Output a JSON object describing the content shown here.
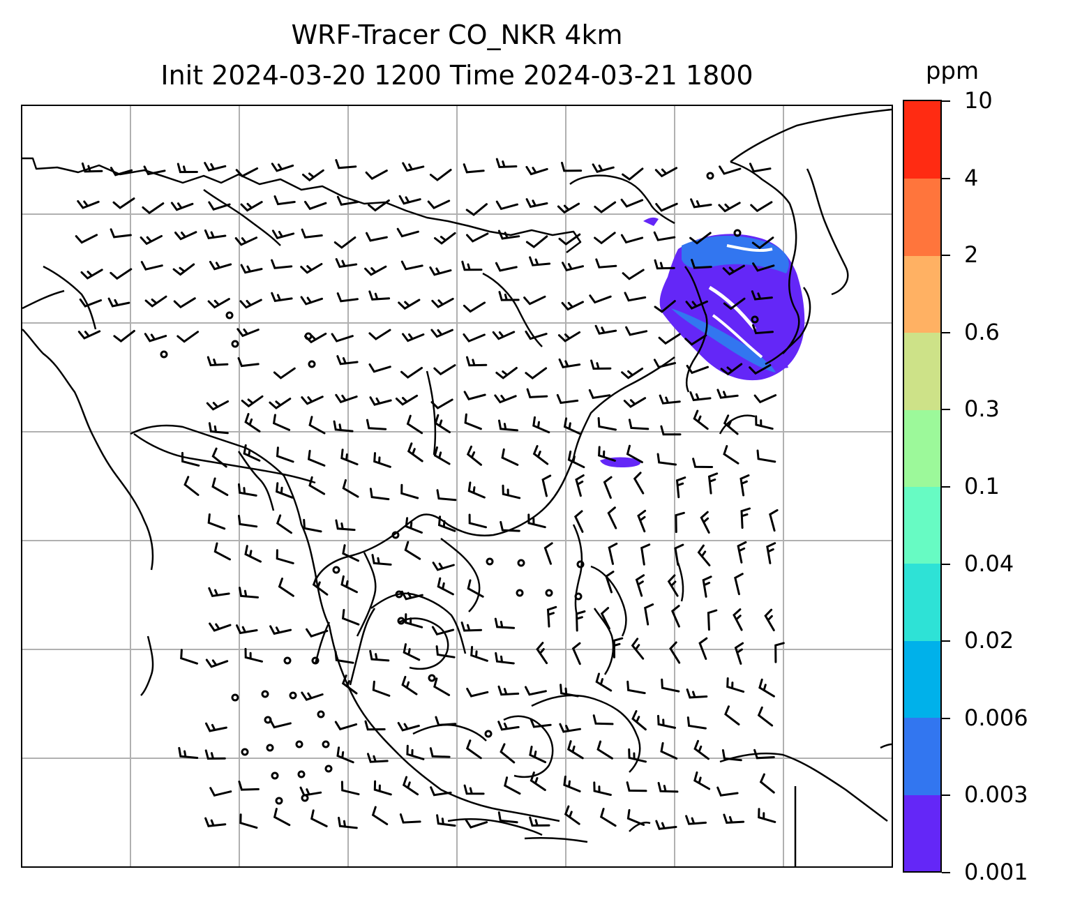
{
  "title": {
    "line1": "WRF-Tracer CO_NKR 4km",
    "line2": "Init 2024-03-20 1200 Time 2024-03-21 1800"
  },
  "colorbar": {
    "unit": "ppm",
    "tick_labels": [
      "0.001",
      "0.003",
      "0.006",
      "0.02",
      "0.04",
      "0.1",
      "0.3",
      "0.6",
      "2",
      "4",
      "10"
    ],
    "colors": [
      "#6427f7",
      "#3276f0",
      "#00b1ea",
      "#2ee2d6",
      "#67fbc3",
      "#9cf99a",
      "#cde288",
      "#ffb163",
      "#ff753c",
      "#ff2b12"
    ]
  },
  "map": {
    "field": "CO_NKR tracer concentration",
    "gridlines": true,
    "plume_color": "#6427f7",
    "plume_edge_color": "#3276f0",
    "overlay": "wind barbs"
  }
}
